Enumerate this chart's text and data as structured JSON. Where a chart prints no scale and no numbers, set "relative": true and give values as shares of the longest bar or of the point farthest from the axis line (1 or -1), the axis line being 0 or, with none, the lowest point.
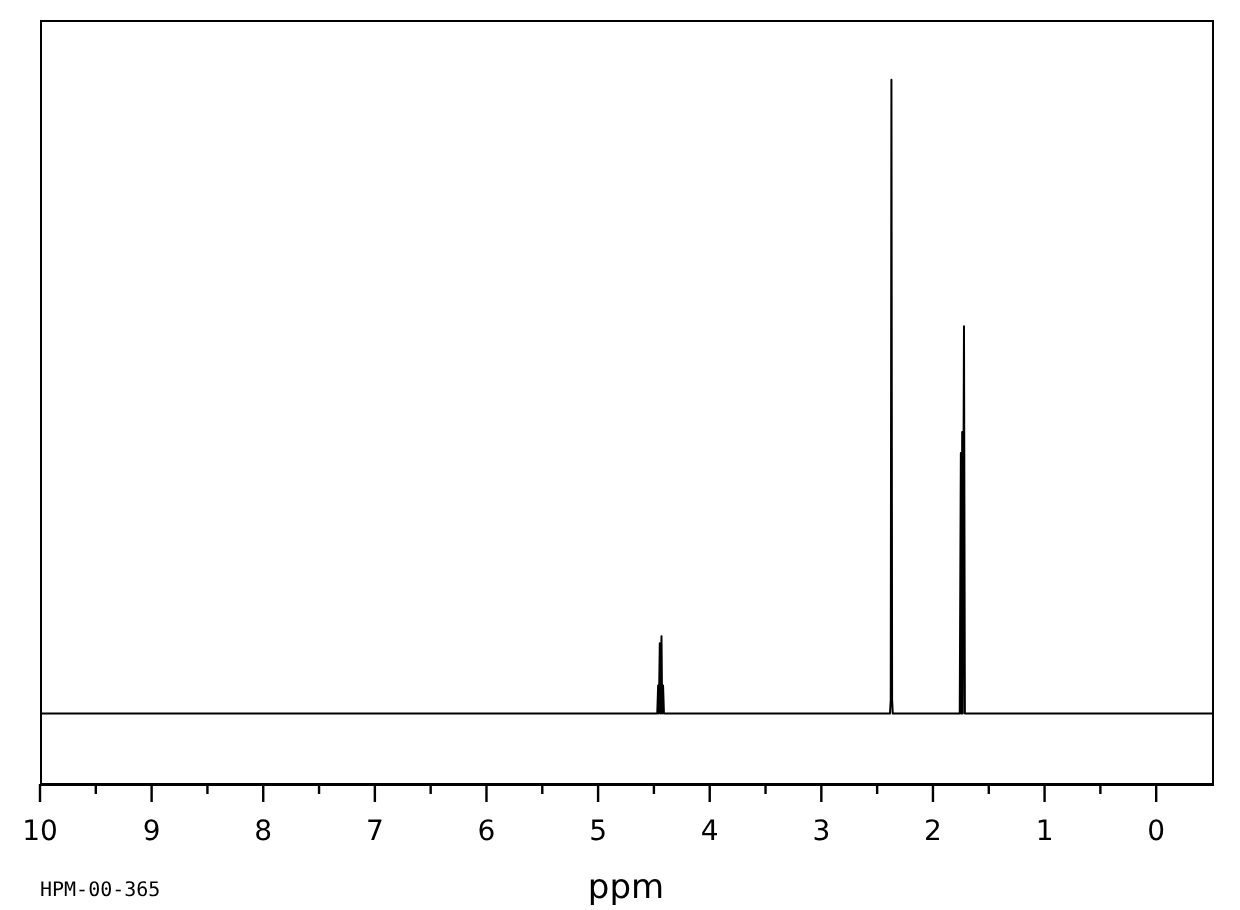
{
  "chart_data": {
    "type": "line",
    "xlabel": "ppm",
    "annotations": [
      "HPM-00-365"
    ],
    "x": [
      10,
      4.47,
      4.462,
      4.456,
      4.447,
      4.44,
      4.432,
      4.426,
      4.418,
      4.41,
      2.385,
      2.378,
      2.372,
      2.366,
      2.36,
      1.76,
      1.75,
      1.746,
      1.738,
      1.734,
      1.722,
      1.714,
      -0.5
    ],
    "series": [
      {
        "color": "#000000",
        "values": [
          0.1,
          0.1,
          0.14,
          0.1,
          0.2,
          0.1,
          0.21,
          0.1,
          0.14,
          0.1,
          0.1,
          0.12,
          1,
          0.12,
          0.1,
          0.1,
          0.47,
          0.1,
          0.5,
          0.1,
          0.65,
          0.1,
          0.1
        ]
      }
    ],
    "relative": true,
    "xlim": [
      10,
      -0.5
    ],
    "xticks": [
      10,
      {
        "value": 9.5,
        "label": null
      },
      9,
      {
        "value": 8.5,
        "label": null
      },
      8,
      {
        "value": 7.5,
        "label": null
      },
      7,
      {
        "value": 6.5,
        "label": null
      },
      6,
      {
        "value": 5.5,
        "label": null
      },
      5,
      {
        "value": 4.5,
        "label": null
      },
      4,
      {
        "value": 3.5,
        "label": null
      },
      3,
      {
        "value": 2.5,
        "label": null
      },
      2,
      {
        "value": 1.5,
        "label": null
      },
      1,
      {
        "value": 0.5,
        "label": null
      },
      0
    ],
    "tick_labels": "x",
    "marker": "none"
  }
}
